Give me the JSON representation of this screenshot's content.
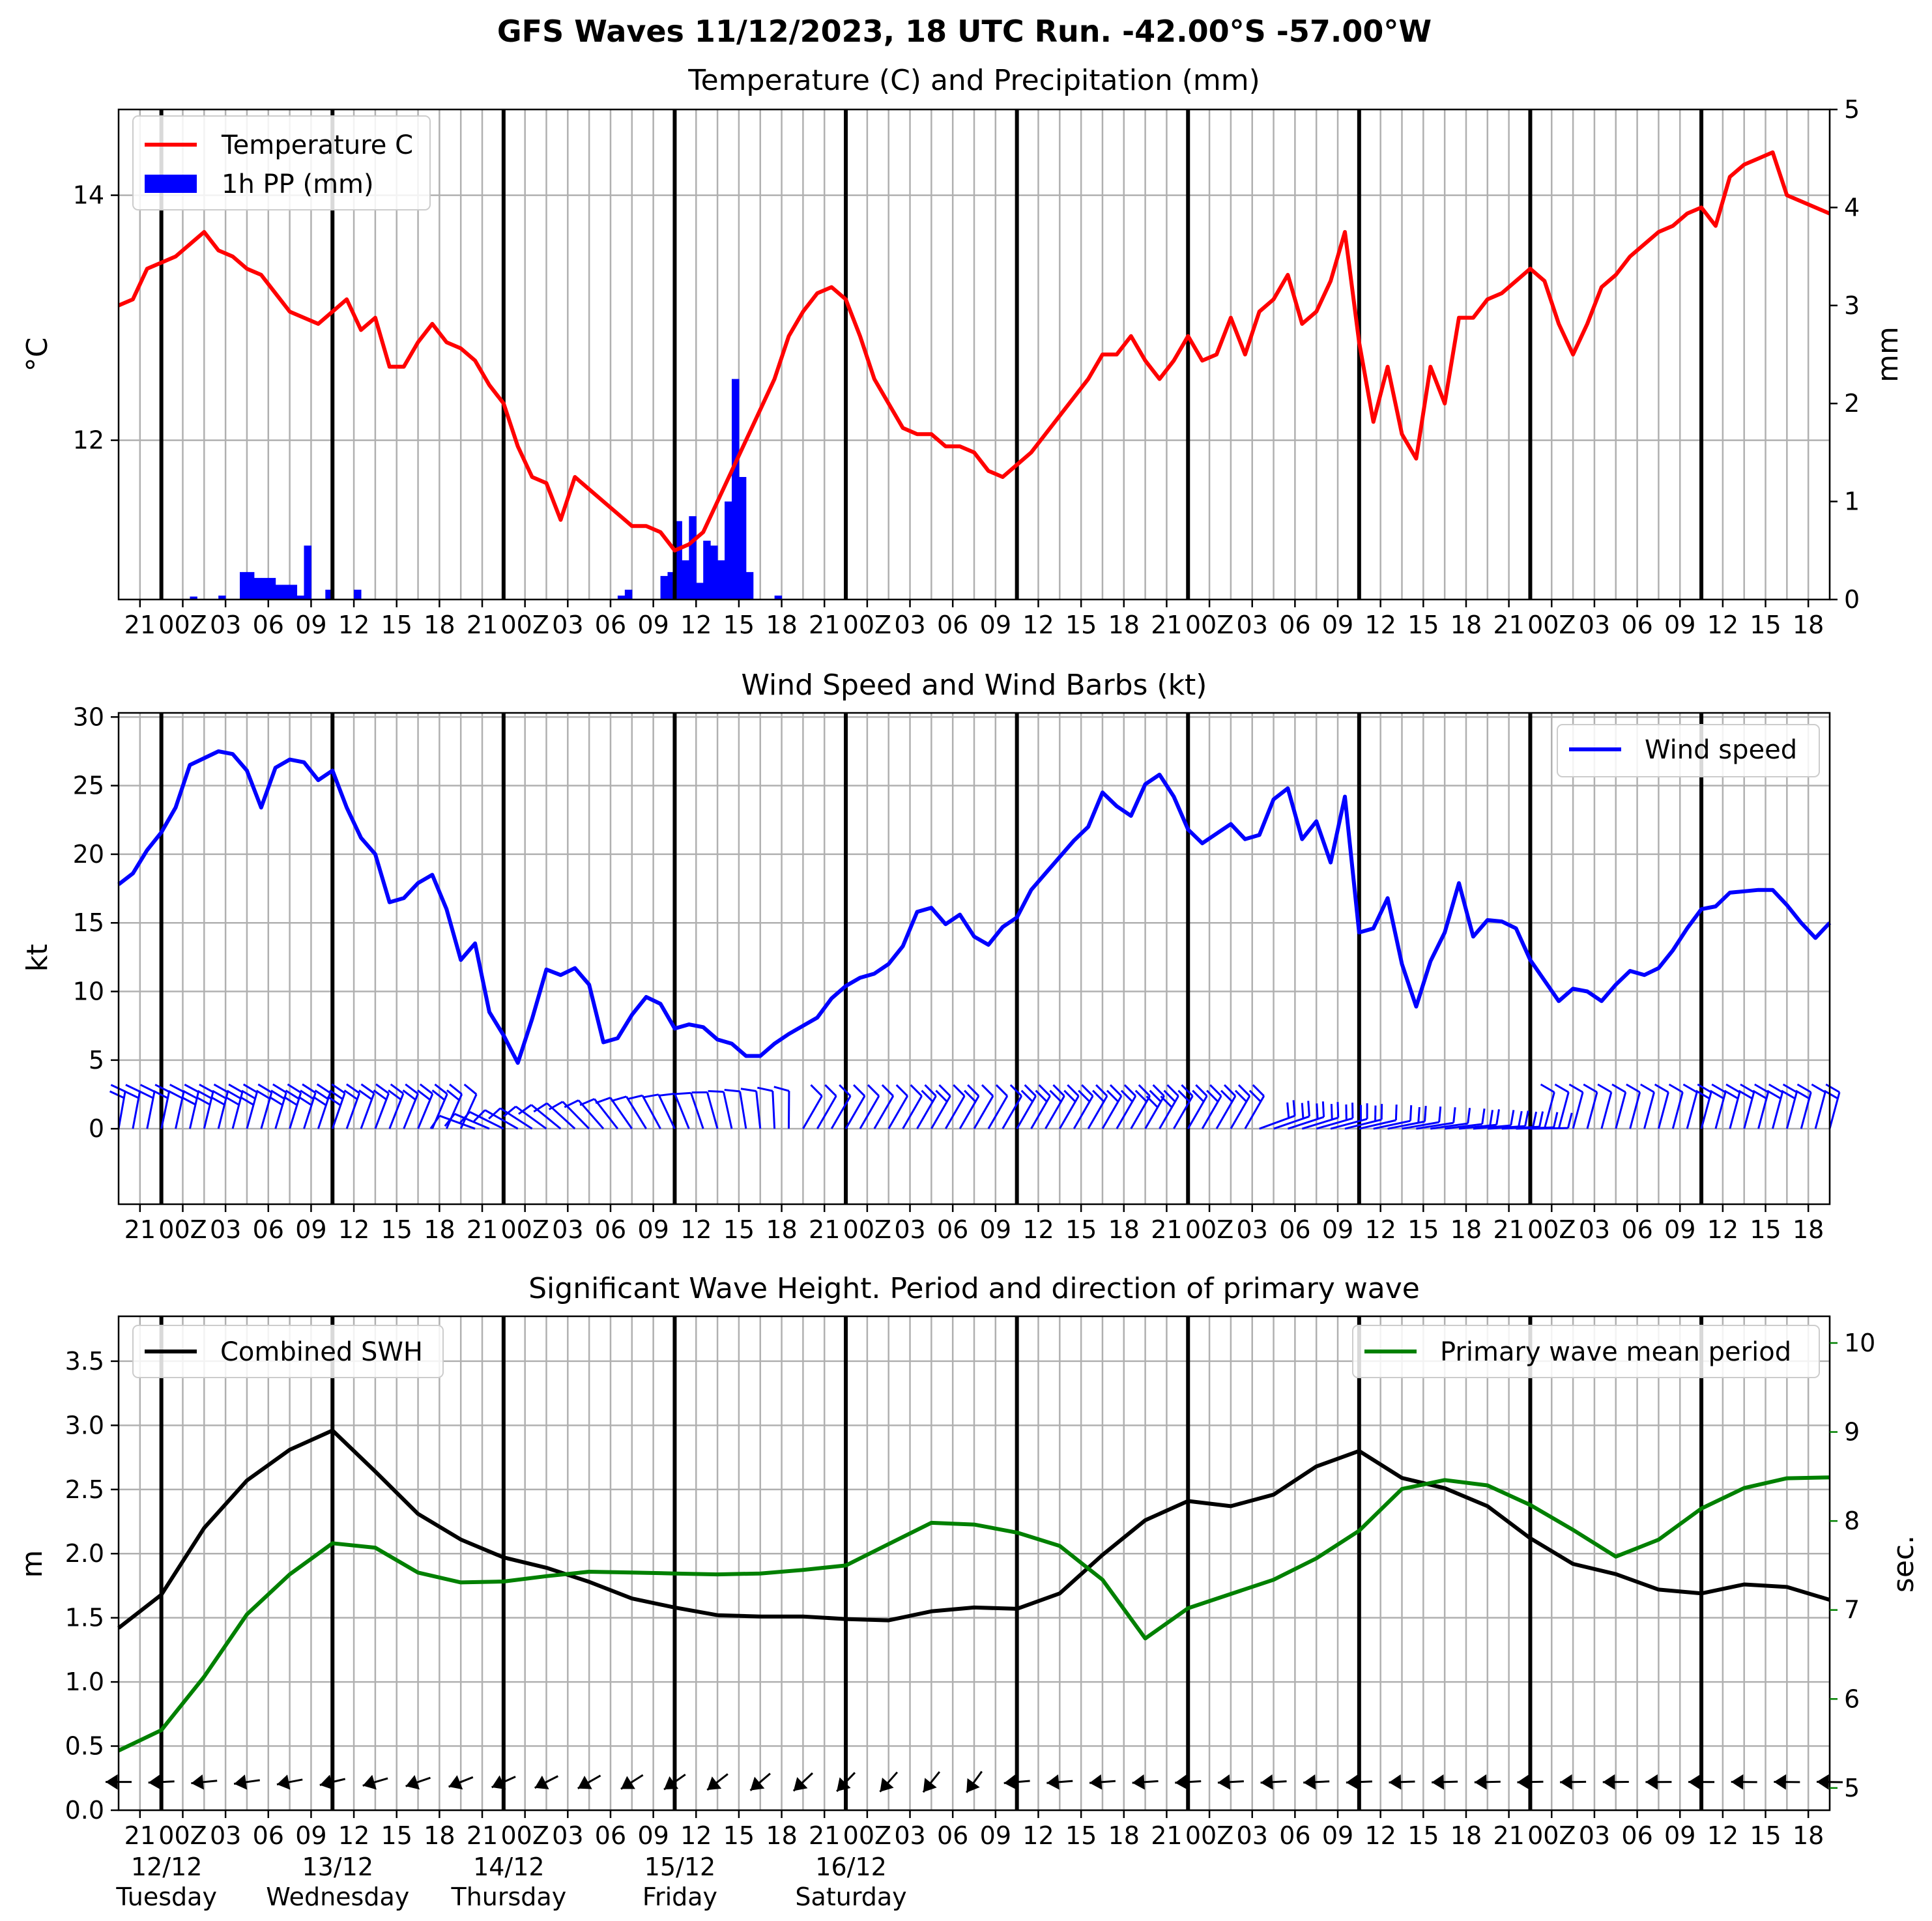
{
  "suptitle": "GFS Waves 11/12/2023, 18 UTC Run. -42.00°S -57.00°W",
  "time_axis": {
    "tick_labels": [
      "21",
      "00Z",
      "03",
      "06",
      "09",
      "12",
      "15",
      "18",
      "21",
      "00Z",
      "03",
      "06",
      "09",
      "12",
      "15",
      "18",
      "21",
      "00Z",
      "03",
      "06",
      "09",
      "12",
      "15",
      "18",
      "21",
      "00Z",
      "03",
      "06",
      "09",
      "12",
      "15",
      "18",
      "21",
      "00Z",
      "03",
      "06",
      "09",
      "12",
      "15",
      "18"
    ],
    "days": [
      {
        "date": "12/12",
        "weekday": "Tuesday"
      },
      {
        "date": "13/12",
        "weekday": "Wednesday"
      },
      {
        "date": "14/12",
        "weekday": "Thursday"
      },
      {
        "date": "15/12",
        "weekday": "Friday"
      },
      {
        "date": "16/12",
        "weekday": "Saturday"
      }
    ]
  },
  "colors": {
    "temperature": "#ff0000",
    "precip": "#0000ff",
    "wind": "#0000ff",
    "swh": "#000000",
    "period": "#008000",
    "grid": "#b0b0b0"
  },
  "chart_data": [
    {
      "type": "line",
      "title": "Temperature (C) and Precipitation (mm)",
      "x_unit": "hours since 11/12 18 UTC",
      "ylabel": "°C",
      "ylabel_right": "mm",
      "ylim": [
        10.7,
        14.7
      ],
      "yticks": [
        12,
        14
      ],
      "ylim_right": [
        0,
        5
      ],
      "yticks_right": [
        0,
        1,
        2,
        3,
        4,
        5
      ],
      "legend": [
        "Temperature C",
        "1h PP (mm)"
      ],
      "legend_position": "top-left",
      "grid": true,
      "series": [
        {
          "name": "Temperature C",
          "kind": "line",
          "x_start": 0,
          "x_step": 2,
          "values": [
            13.1,
            13.15,
            13.4,
            13.45,
            13.5,
            13.6,
            13.7,
            13.55,
            13.5,
            13.4,
            13.35,
            13.2,
            13.05,
            13.0,
            12.95,
            13.05,
            13.15,
            12.9,
            13.0,
            12.6,
            12.6,
            12.8,
            12.95,
            12.8,
            12.75,
            12.65,
            12.45,
            12.3,
            11.95,
            11.7,
            11.65,
            11.35,
            11.7,
            11.6,
            11.5,
            11.4,
            11.3,
            11.3,
            11.25,
            11.1,
            11.15,
            11.25,
            11.5,
            11.75,
            12.0,
            12.25,
            12.5,
            12.85,
            13.05,
            13.2,
            13.25,
            13.15,
            12.85,
            12.5,
            12.3,
            12.1,
            12.05,
            12.05,
            11.95,
            11.95,
            11.9,
            11.75,
            11.7,
            11.8,
            11.9,
            12.05,
            12.2,
            12.35,
            12.5,
            12.7,
            12.7,
            12.85,
            12.65,
            12.5,
            12.65,
            12.85,
            12.65,
            12.7,
            13.0,
            12.7,
            13.05,
            13.15,
            13.35,
            12.95,
            13.05,
            13.3,
            13.7,
            12.8,
            12.15,
            12.6,
            12.05,
            11.85,
            12.6,
            12.3,
            13.0,
            13.0,
            13.15,
            13.2,
            13.3,
            13.4,
            13.3,
            12.95,
            12.7,
            12.95,
            13.25,
            13.35,
            13.5,
            13.6,
            13.7,
            13.75,
            13.85,
            13.9,
            13.75,
            14.15,
            14.25,
            14.3,
            14.35,
            14.0,
            13.95,
            13.9,
            13.85
          ]
        },
        {
          "name": "1h PP (mm)",
          "kind": "bar",
          "points": [
            [
              10,
              0.03
            ],
            [
              14,
              0.04
            ],
            [
              17,
              0.28
            ],
            [
              18,
              0.28
            ],
            [
              19,
              0.22
            ],
            [
              20,
              0.22
            ],
            [
              21,
              0.22
            ],
            [
              22,
              0.15
            ],
            [
              23,
              0.15
            ],
            [
              24,
              0.15
            ],
            [
              25,
              0.04
            ],
            [
              26,
              0.55
            ],
            [
              29,
              0.1
            ],
            [
              33,
              0.1
            ],
            [
              70,
              0.04
            ],
            [
              71,
              0.1
            ],
            [
              76,
              0.24
            ],
            [
              77,
              0.28
            ],
            [
              78,
              0.8
            ],
            [
              79,
              0.4
            ],
            [
              80,
              0.85
            ],
            [
              81,
              0.17
            ],
            [
              82,
              0.6
            ],
            [
              83,
              0.55
            ],
            [
              84,
              0.4
            ],
            [
              85,
              1.0
            ],
            [
              86,
              2.25
            ],
            [
              87,
              1.25
            ],
            [
              88,
              0.28
            ],
            [
              92,
              0.04
            ]
          ]
        }
      ]
    },
    {
      "type": "line",
      "title": "Wind Speed and Wind Barbs (kt)",
      "x_unit": "hours since 11/12 18 UTC",
      "ylabel": "kt",
      "ylim": [
        -5.5,
        30.3
      ],
      "yticks": [
        0,
        5,
        10,
        15,
        20,
        25,
        30
      ],
      "legend": [
        "Wind speed"
      ],
      "legend_position": "top-right",
      "grid": true,
      "series": [
        {
          "name": "Wind speed",
          "kind": "line",
          "x_start": 0,
          "x_step": 2,
          "values": [
            17.8,
            18.6,
            20.3,
            21.6,
            23.4,
            26.5,
            27.0,
            27.5,
            27.3,
            26.1,
            23.4,
            26.3,
            26.9,
            26.7,
            25.4,
            26.1,
            23.4,
            21.2,
            20.0,
            16.5,
            16.8,
            17.9,
            18.5,
            16.0,
            12.3,
            13.5,
            8.5,
            6.8,
            4.8,
            8.0,
            11.6,
            11.2,
            11.7,
            10.5,
            6.3,
            6.6,
            8.3,
            9.6,
            9.1,
            7.3,
            7.6,
            7.4,
            6.5,
            6.2,
            5.3,
            5.3,
            6.2,
            6.9,
            7.5,
            8.1,
            9.5,
            10.4,
            11.0,
            11.3,
            12.0,
            13.3,
            15.8,
            16.1,
            14.9,
            15.6,
            14.0,
            13.4,
            14.7,
            15.4,
            17.4,
            18.6,
            19.8,
            21.0,
            22.0,
            24.5,
            23.5,
            22.8,
            25.1,
            25.8,
            24.2,
            21.8,
            20.8,
            21.5,
            22.2,
            21.1,
            21.4,
            24.0,
            24.8,
            21.1,
            22.4,
            19.4,
            24.2,
            14.3,
            14.6,
            16.8,
            12.0,
            8.9,
            12.2,
            14.3,
            17.9,
            14.0,
            15.2,
            15.1,
            14.6,
            12.3,
            10.8,
            9.3,
            10.2,
            10.0,
            9.3,
            10.5,
            11.5,
            11.2,
            11.7,
            13.0,
            14.6,
            16.0,
            16.2,
            17.2,
            17.3,
            17.4,
            17.4,
            16.3,
            15.0,
            13.9,
            15.0
          ]
        }
      ]
    },
    {
      "type": "line",
      "title": "Significant Wave Height. Period and direction of primary wave",
      "x_unit": "hours since 11/12 18 UTC",
      "ylabel": "m",
      "ylabel_right": "sec.",
      "ylim": [
        0,
        3.85
      ],
      "yticks": [
        0.0,
        0.5,
        1.0,
        1.5,
        2.0,
        2.5,
        3.0,
        3.5
      ],
      "ylim_right": [
        4.75,
        10.3
      ],
      "yticks_right": [
        5,
        6,
        7,
        8,
        9,
        10
      ],
      "legend": [
        "Combined SWH",
        "Primary wave mean period"
      ],
      "legend_position": "top-left / top-right",
      "grid": true,
      "series": [
        {
          "name": "Combined SWH",
          "kind": "line",
          "x_start": 0,
          "x_step": 6,
          "values": [
            1.42,
            1.68,
            2.2,
            2.57,
            2.81,
            2.96,
            2.64,
            2.31,
            2.11,
            1.97,
            1.89,
            1.78,
            1.65,
            1.58,
            1.52,
            1.51,
            1.51,
            1.49,
            1.48,
            1.55,
            1.58,
            1.57,
            1.69,
            1.99,
            2.26,
            2.41,
            2.37,
            2.46,
            2.68,
            2.8,
            2.59,
            2.51,
            2.37,
            2.12,
            1.92,
            1.84,
            1.72,
            1.69,
            1.76,
            1.74,
            1.64
          ]
        },
        {
          "name": "Primary wave mean period",
          "kind": "line",
          "axis": "right",
          "x_start": 0,
          "x_step": 6,
          "values": [
            5.42,
            5.65,
            6.25,
            6.95,
            7.4,
            7.75,
            7.7,
            7.42,
            7.31,
            7.32,
            7.38,
            7.43,
            7.42,
            7.41,
            7.4,
            7.41,
            7.45,
            7.5,
            7.74,
            7.98,
            7.96,
            7.87,
            7.72,
            7.34,
            6.68,
            7.02,
            7.18,
            7.34,
            7.58,
            7.89,
            8.36,
            8.46,
            8.4,
            8.18,
            7.9,
            7.6,
            7.79,
            8.14,
            8.37,
            8.48,
            8.49
          ]
        }
      ]
    }
  ]
}
